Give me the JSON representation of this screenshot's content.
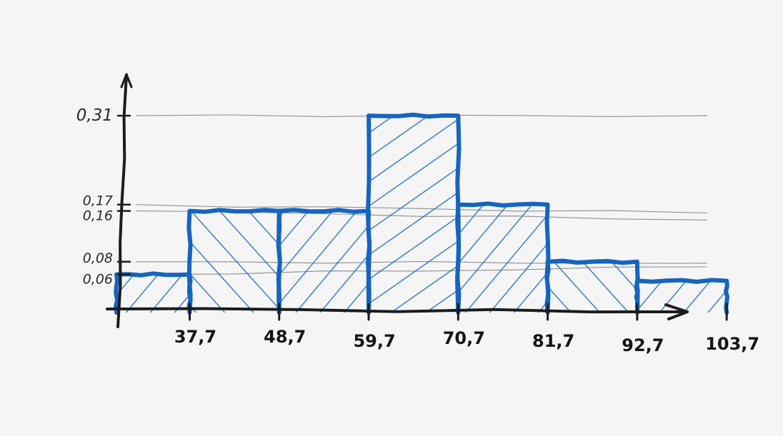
{
  "chart_data": {
    "type": "bar",
    "style": "hand-drawn histogram",
    "title": "",
    "xlabel": "",
    "ylabel": "",
    "bin_edges": [
      28.7,
      37.7,
      48.7,
      59.7,
      70.7,
      81.7,
      92.7,
      103.7
    ],
    "values": [
      0.06,
      0.16,
      0.16,
      0.31,
      0.17,
      0.08,
      0.05
    ],
    "x_tick_labels": [
      {
        "value": 37.7,
        "label": "37,7"
      },
      {
        "value": 48.7,
        "label": "48,7"
      },
      {
        "value": 59.7,
        "label": "59,7"
      },
      {
        "value": 70.7,
        "label": "70,7"
      },
      {
        "value": 81.7,
        "label": "81,7"
      },
      {
        "value": 92.7,
        "label": "92,7"
      },
      {
        "value": 103.7,
        "label": "103,7"
      }
    ],
    "y_tick_labels": [
      {
        "value": 0.31,
        "label": "0,31"
      },
      {
        "value": 0.17,
        "label": "0,17"
      },
      {
        "value": 0.16,
        "label": "0,16"
      },
      {
        "value": 0.08,
        "label": "0,08"
      },
      {
        "value": 0.06,
        "label": "0,06"
      }
    ],
    "ylim": [
      0,
      0.35
    ],
    "grid": true,
    "legend": "none",
    "colors": {
      "bar": "#1565c0",
      "hatch": "#1a6bc4",
      "axis": "#1c1c1c",
      "grid": "#3a3a3a",
      "background": "#f5f5f5"
    }
  }
}
